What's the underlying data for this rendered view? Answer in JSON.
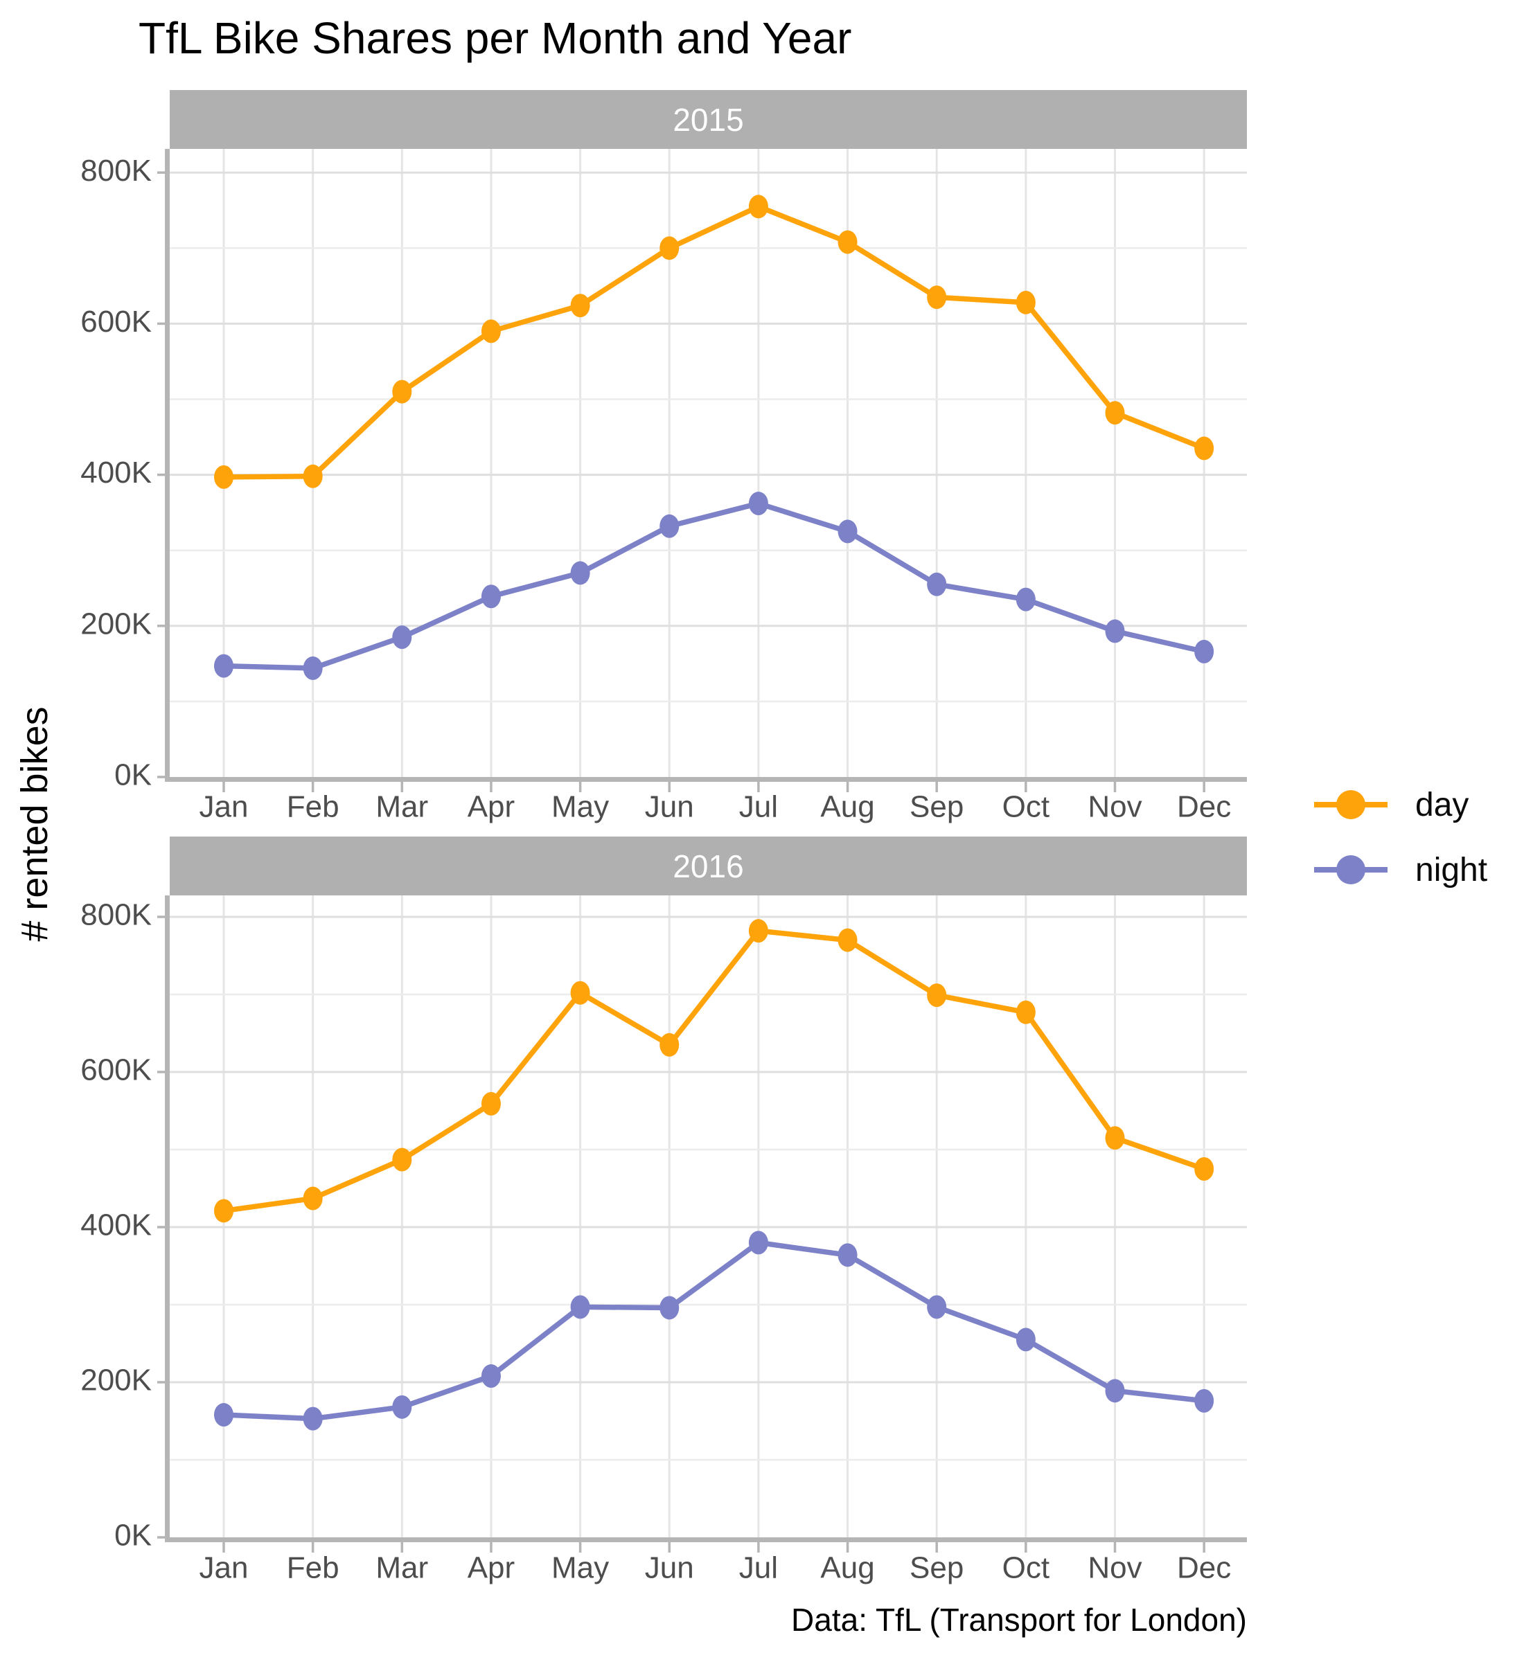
{
  "title": "TfL Bike Shares per Month and Year",
  "y_axis_title": "# rented bikes",
  "caption": "Data: TfL (Transport for London)",
  "legend": {
    "position": "right",
    "items": [
      {
        "label": "day",
        "color": "#FFA30A"
      },
      {
        "label": "night",
        "color": "#7C81C8"
      }
    ]
  },
  "colors": {
    "day": "#FFA30A",
    "night": "#7C81C8",
    "strip_background": "#B0B0B0",
    "strip_text": "#FFFFFF",
    "grid_major": "#DFDFDF",
    "grid_minor": "#ECECEC",
    "axis_line": "#B5B5B5",
    "tick_label": "#4D4D4D",
    "background": "#FFFFFF"
  },
  "chart_data": {
    "type": "line",
    "title": "TfL Bike Shares per Month and Year",
    "xlabel": "",
    "ylabel": "# rented bikes",
    "grid": true,
    "legend_position": "right",
    "months": [
      "Jan",
      "Feb",
      "Mar",
      "Apr",
      "May",
      "Jun",
      "Jul",
      "Aug",
      "Sep",
      "Oct",
      "Nov",
      "Dec"
    ],
    "y_ticks": [
      {
        "value": 0,
        "label": "0K"
      },
      {
        "value": 200000,
        "label": "200K"
      },
      {
        "value": 400000,
        "label": "400K"
      },
      {
        "value": 600000,
        "label": "600K"
      },
      {
        "value": 800000,
        "label": "800K"
      }
    ],
    "ylim": [
      0,
      830000
    ],
    "facets": [
      {
        "label": "2015",
        "series": [
          {
            "name": "day",
            "color": "#FFA30A",
            "values": [
              397000,
              398000,
              510000,
              590000,
              624000,
              700000,
              755000,
              708000,
              635000,
              628000,
              482000,
              435000
            ]
          },
          {
            "name": "night",
            "color": "#7C81C8",
            "values": [
              147000,
              144000,
              185000,
              239000,
              270000,
              332000,
              362000,
              325000,
              255000,
              235000,
              193000,
              166000
            ]
          }
        ]
      },
      {
        "label": "2016",
        "series": [
          {
            "name": "day",
            "color": "#FFA30A",
            "values": [
              421000,
              437000,
              487000,
              559000,
              702000,
              635000,
              782000,
              770000,
              699000,
              677000,
              515000,
              475000
            ]
          },
          {
            "name": "night",
            "color": "#7C81C8",
            "values": [
              158000,
              153000,
              168000,
              208000,
              297000,
              296000,
              380000,
              364000,
              297000,
              255000,
              189000,
              176000
            ]
          }
        ]
      }
    ]
  }
}
